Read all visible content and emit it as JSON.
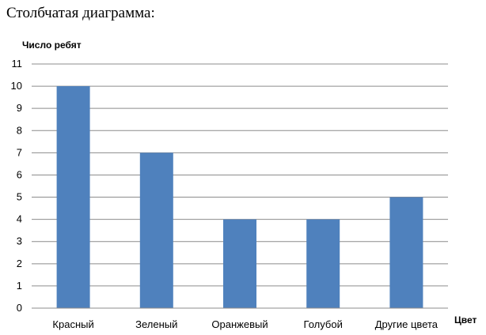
{
  "heading": "Столбчатая диаграмма:",
  "chart_data": {
    "type": "bar",
    "categories": [
      "Красный",
      "Зеленый",
      "Оранжевый",
      "Голубой",
      "Другие цвета"
    ],
    "values": [
      10,
      7,
      4,
      4,
      5
    ],
    "ylabel": "Число ребят",
    "xlabel": "Цвет",
    "ylim": [
      0,
      11
    ],
    "yticks": [
      0,
      1,
      2,
      3,
      4,
      5,
      6,
      7,
      8,
      9,
      10,
      11
    ],
    "grid": true,
    "bar_color": "#4F81BD"
  }
}
